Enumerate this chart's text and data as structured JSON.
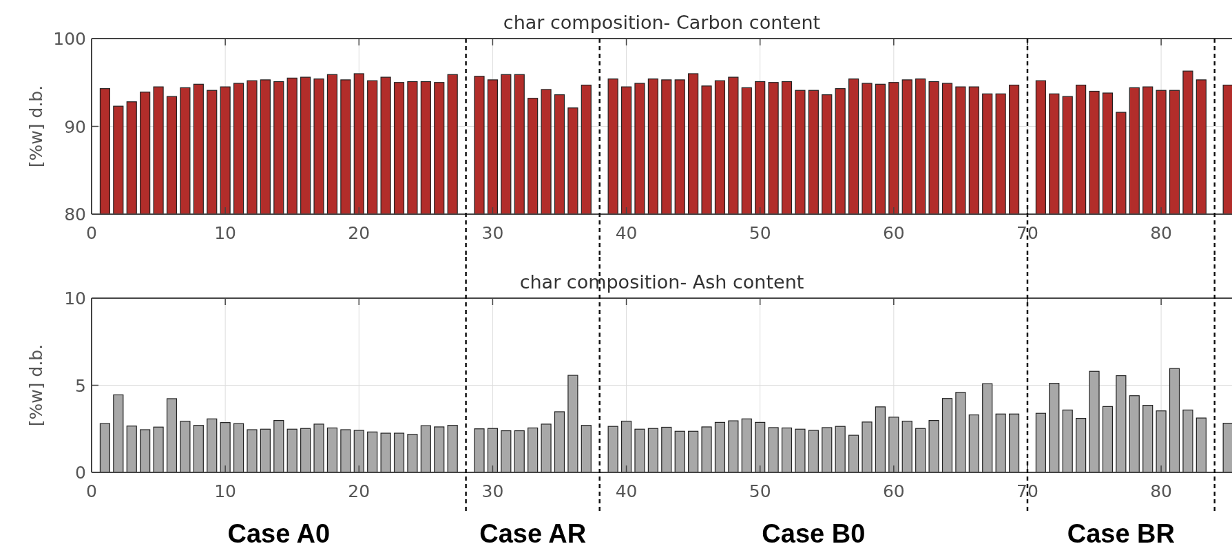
{
  "chart_data": [
    {
      "type": "bar",
      "title": "char composition- Carbon content",
      "ylabel": "[%w] d.b.",
      "color": "#b22d2a",
      "xlim": [
        0,
        85.3
      ],
      "xticks": [
        0,
        10,
        20,
        30,
        40,
        50,
        60,
        70,
        80
      ],
      "ylim": [
        80,
        100
      ],
      "yticks": [
        80,
        90,
        100
      ],
      "grid": true,
      "x": [
        1,
        2,
        3,
        4,
        5,
        6,
        7,
        8,
        9,
        10,
        11,
        12,
        13,
        14,
        15,
        16,
        17,
        18,
        19,
        20,
        21,
        22,
        23,
        24,
        25,
        26,
        27,
        29,
        30,
        31,
        32,
        33,
        34,
        35,
        36,
        37,
        39,
        40,
        41,
        42,
        43,
        44,
        45,
        46,
        47,
        48,
        49,
        50,
        51,
        52,
        53,
        54,
        55,
        56,
        57,
        58,
        59,
        60,
        61,
        62,
        63,
        64,
        65,
        66,
        67,
        68,
        69,
        71,
        72,
        73,
        74,
        75,
        76,
        77,
        78,
        79,
        80,
        81,
        82,
        83,
        85
      ],
      "values": [
        94.3,
        92.3,
        92.8,
        93.9,
        94.5,
        93.4,
        94.4,
        94.8,
        94.1,
        94.5,
        94.9,
        95.2,
        95.3,
        95.1,
        95.5,
        95.6,
        95.4,
        95.9,
        95.3,
        96.0,
        95.2,
        95.6,
        95.0,
        95.1,
        95.1,
        95.0,
        95.9,
        95.7,
        95.3,
        95.9,
        95.9,
        93.2,
        94.2,
        93.6,
        92.1,
        94.7,
        95.4,
        94.5,
        94.9,
        95.4,
        95.3,
        95.3,
        96.0,
        94.6,
        95.2,
        95.6,
        94.4,
        95.1,
        95.0,
        95.1,
        94.1,
        94.1,
        93.6,
        94.3,
        95.4,
        94.9,
        94.8,
        95.0,
        95.3,
        95.4,
        95.1,
        94.9,
        94.5,
        94.5,
        93.7,
        93.7,
        94.7,
        95.2,
        93.7,
        93.4,
        94.7,
        94.0,
        93.8,
        91.6,
        94.4,
        94.5,
        94.1,
        94.1,
        96.3,
        95.3,
        94.7
      ],
      "ref_lines": [
        {
          "axis": "x",
          "value": 28,
          "line_style": "dashed"
        },
        {
          "axis": "x",
          "value": 38,
          "line_style": "dashed"
        },
        {
          "axis": "x",
          "value": 70,
          "line_style": "dashed"
        },
        {
          "axis": "x",
          "value": 84,
          "line_style": "dashed"
        }
      ]
    },
    {
      "type": "bar",
      "title": "char composition- Ash content",
      "ylabel": "[%w] d.b.",
      "color": "#a8a8a8",
      "xlim": [
        0,
        85.3
      ],
      "xticks": [
        0,
        10,
        20,
        30,
        40,
        50,
        60,
        70,
        80
      ],
      "ylim": [
        0,
        10
      ],
      "yticks": [
        0,
        5,
        10
      ],
      "grid": true,
      "x": [
        1,
        2,
        3,
        4,
        5,
        6,
        7,
        8,
        9,
        10,
        11,
        12,
        13,
        14,
        15,
        16,
        17,
        18,
        19,
        20,
        21,
        22,
        23,
        24,
        25,
        26,
        27,
        29,
        30,
        31,
        32,
        33,
        34,
        35,
        36,
        37,
        39,
        40,
        41,
        42,
        43,
        44,
        45,
        46,
        47,
        48,
        49,
        50,
        51,
        52,
        53,
        54,
        55,
        56,
        57,
        58,
        59,
        60,
        61,
        62,
        63,
        64,
        65,
        66,
        67,
        68,
        69,
        71,
        72,
        73,
        74,
        75,
        76,
        77,
        78,
        79,
        80,
        81,
        82,
        83,
        85
      ],
      "values": [
        2.8,
        4.45,
        2.66,
        2.45,
        2.6,
        4.23,
        2.93,
        2.7,
        3.07,
        2.86,
        2.8,
        2.45,
        2.48,
        2.98,
        2.48,
        2.52,
        2.77,
        2.55,
        2.45,
        2.41,
        2.32,
        2.25,
        2.25,
        2.18,
        2.68,
        2.61,
        2.7,
        2.5,
        2.52,
        2.39,
        2.39,
        2.55,
        2.77,
        3.48,
        5.57,
        2.7,
        2.64,
        2.94,
        2.48,
        2.52,
        2.59,
        2.36,
        2.36,
        2.61,
        2.87,
        2.96,
        3.07,
        2.87,
        2.57,
        2.55,
        2.48,
        2.41,
        2.57,
        2.64,
        2.13,
        2.89,
        3.76,
        3.17,
        2.94,
        2.52,
        2.98,
        4.24,
        4.59,
        3.3,
        5.09,
        3.35,
        3.35,
        3.39,
        5.11,
        3.58,
        3.1,
        5.8,
        3.78,
        5.55,
        4.4,
        3.85,
        3.53,
        5.96,
        3.58,
        3.12,
        2.82
      ],
      "ref_lines": [
        {
          "axis": "x",
          "value": 28,
          "line_style": "dashed"
        },
        {
          "axis": "x",
          "value": 38,
          "line_style": "dashed"
        },
        {
          "axis": "x",
          "value": 70,
          "line_style": "dashed"
        },
        {
          "axis": "x",
          "value": 84,
          "line_style": "dashed"
        }
      ],
      "annotations": [
        "Case A0",
        "Case AR",
        "Case B0",
        "Case BR"
      ]
    }
  ]
}
